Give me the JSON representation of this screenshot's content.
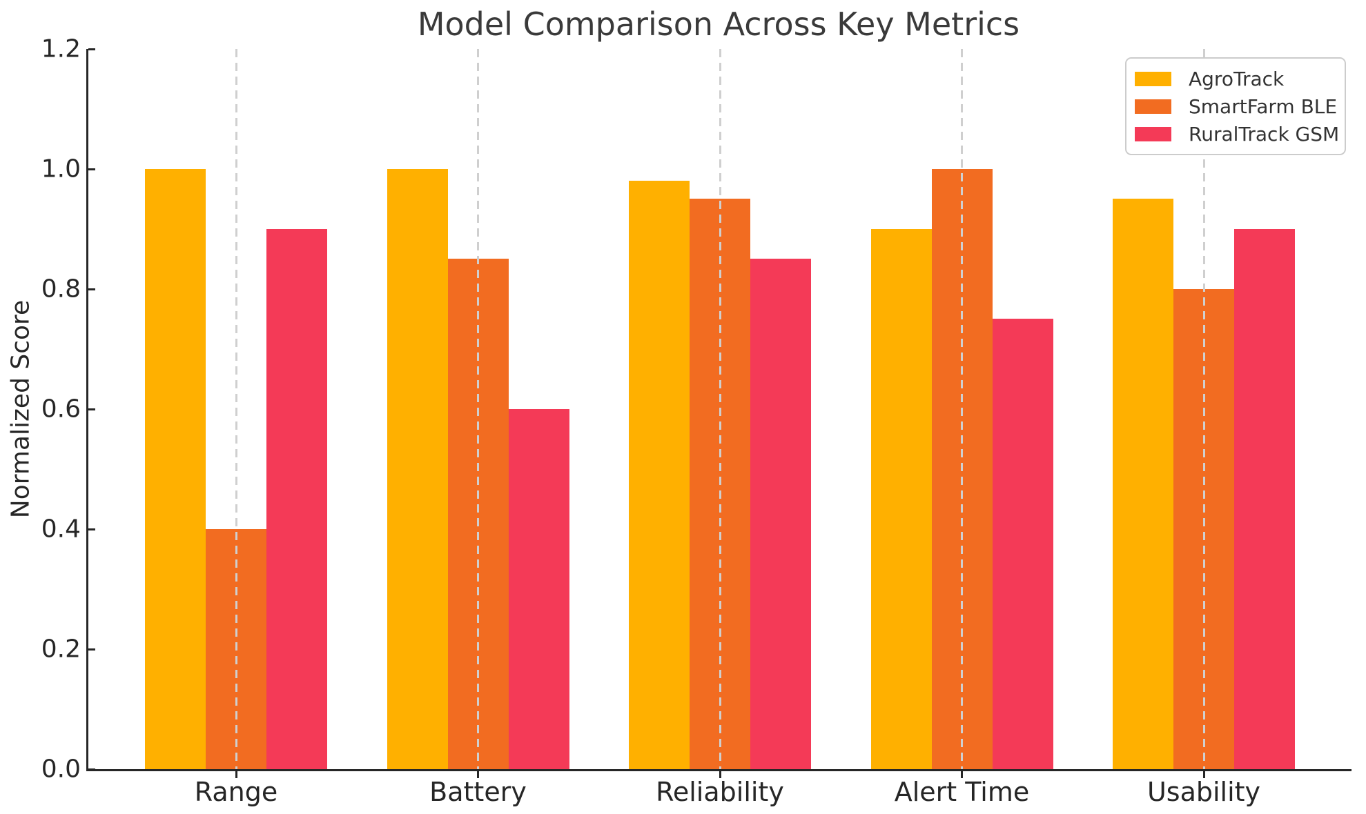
{
  "chart_data": {
    "type": "bar",
    "title": "Model Comparison Across Key Metrics",
    "xlabel": "",
    "ylabel": "Normalized Score",
    "categories": [
      "Range",
      "Battery",
      "Reliability",
      "Alert Time",
      "Usability"
    ],
    "series": [
      {
        "name": "AgroTrack",
        "color": "#FFB000",
        "values": [
          1.0,
          1.0,
          0.98,
          0.9,
          0.95
        ]
      },
      {
        "name": "SmartFarm BLE",
        "color": "#F26C21",
        "values": [
          0.4,
          0.85,
          0.95,
          1.0,
          0.8
        ]
      },
      {
        "name": "RuralTrack GSM",
        "color": "#F43A57",
        "values": [
          0.9,
          0.6,
          0.85,
          0.75,
          0.9
        ]
      }
    ],
    "ylim": [
      0.0,
      1.2
    ],
    "yticks": [
      0.0,
      0.2,
      0.4,
      0.6,
      0.8,
      1.0,
      1.2
    ],
    "ytick_labels": [
      "0.0",
      "0.2",
      "0.4",
      "0.6",
      "0.8",
      "1.0",
      "1.2"
    ],
    "grid": {
      "vertical_dashed": true,
      "horizontal": false,
      "color": "#cfcfcf",
      "on_top_of_bars": true
    },
    "legend": {
      "position": "upper-right"
    },
    "colors": {
      "axis": "#262626",
      "tick_text": "#262626",
      "title_text": "#3a3a3a",
      "legend_text": "#333333",
      "legend_border": "#cccccc",
      "background": "#ffffff"
    }
  }
}
